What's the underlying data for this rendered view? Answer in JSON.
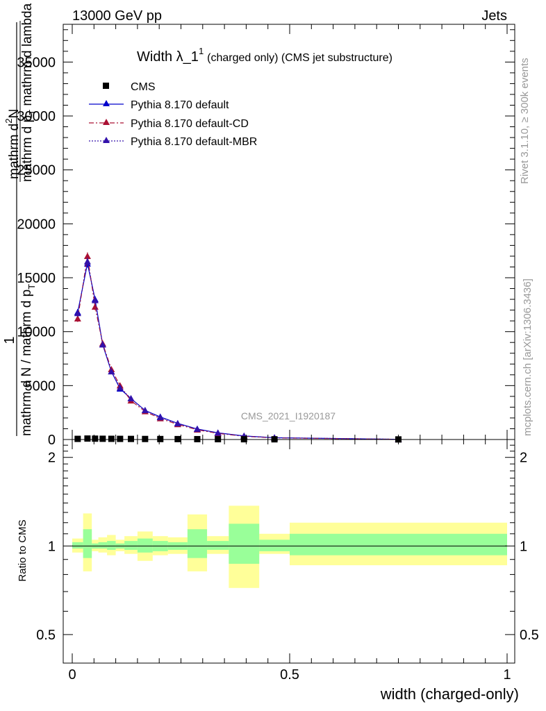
{
  "header": {
    "left": "13000 GeV pp",
    "right": "Jets"
  },
  "side_labels": {
    "rivet": "Rivet 3.1.10, ≥ 300k events",
    "mcplots": "mcplots.cern.ch [arXiv:1306.3436]"
  },
  "watermark": "CMS_2021_I1920187",
  "colors": {
    "cms": "#000000",
    "default": "#0000cc",
    "cd": "#aa1133",
    "mbr": "#3311aa",
    "band_outer": "#ffff99",
    "band_inner": "#99ff99"
  },
  "chart_data": {
    "type": "line",
    "title": {
      "main": "Width λ_1",
      "sup": "1",
      "rest": "(charged only) (CMS jet substructure)"
    },
    "ylabel": {
      "outer_numerator": "1",
      "outer_denominator": "mathrm d N / mathrm d p",
      "outer_denominator_sub": "T",
      "inner_numerator": "mathrm d",
      "inner_numerator_sup": "2",
      "inner_numerator_tail": "N",
      "inner_denominator": "mathrm d p",
      "inner_denominator_sub": "T",
      "inner_denominator_tail": " mathrm d lambda"
    },
    "xlabel": "width (charged-only)",
    "ratio_ylabel": "Ratio to CMS",
    "xlim": [
      0,
      1
    ],
    "ylim": [
      0,
      38500
    ],
    "ratio_ylim": [
      0.4,
      2.3
    ],
    "x_ticks": [
      0,
      0.5,
      1
    ],
    "x_tick_labels": [
      "0",
      "0.5",
      "1"
    ],
    "y_ticks": [
      0,
      5000,
      10000,
      15000,
      20000,
      25000,
      30000,
      35000
    ],
    "y_tick_labels": [
      "0",
      "5000",
      "10000",
      "15000",
      "20000",
      "25000",
      "30000",
      "35000"
    ],
    "ratio_ticks": [
      0.5,
      1,
      2
    ],
    "ratio_tick_labels": [
      "0.5",
      "1",
      "2"
    ],
    "legend": [
      "CMS",
      "Pythia 8.170 default",
      "Pythia 8.170 default-CD",
      "Pythia 8.170 default-MBR"
    ],
    "bin_edges": [
      0,
      0.025,
      0.045,
      0.06,
      0.08,
      0.1,
      0.12,
      0.15,
      0.185,
      0.22,
      0.265,
      0.31,
      0.36,
      0.43,
      0.5,
      1.0
    ],
    "x": [
      0.0125,
      0.035,
      0.0525,
      0.07,
      0.09,
      0.11,
      0.135,
      0.1675,
      0.2025,
      0.2425,
      0.2875,
      0.335,
      0.395,
      0.465,
      0.75
    ],
    "cms_values": [
      60,
      90,
      80,
      70,
      65,
      60,
      55,
      50,
      45,
      40,
      35,
      30,
      25,
      20,
      10
    ],
    "series": [
      {
        "name": "Pythia 8.170 default",
        "style": "solid",
        "color": "#0000cc",
        "values": [
          11800,
          16300,
          13000,
          8800,
          6300,
          4700,
          3800,
          2700,
          2100,
          1500,
          980,
          620,
          330,
          170,
          20
        ],
        "errors": [
          300,
          350,
          300,
          200,
          150,
          120,
          100,
          80,
          60,
          50,
          40,
          30,
          20,
          15,
          5
        ]
      },
      {
        "name": "Pythia 8.170 default-CD",
        "style": "dashdot",
        "color": "#aa1133",
        "values": [
          11200,
          17000,
          12300,
          8900,
          6500,
          5000,
          3600,
          2600,
          1950,
          1400,
          900,
          570,
          300,
          150,
          18
        ],
        "errors": [
          300,
          350,
          300,
          200,
          150,
          120,
          100,
          80,
          60,
          50,
          40,
          30,
          20,
          15,
          5
        ]
      },
      {
        "name": "Pythia 8.170 default-MBR",
        "style": "dotted",
        "color": "#3311aa",
        "values": [
          11700,
          16500,
          12900,
          8800,
          6300,
          4800,
          3800,
          2700,
          2050,
          1480,
          960,
          610,
          320,
          165,
          20
        ],
        "errors": [
          300,
          350,
          300,
          200,
          150,
          120,
          100,
          80,
          60,
          50,
          40,
          30,
          20,
          15,
          5
        ]
      }
    ],
    "ratio_band_outer": [
      [
        0.95,
        1.06
      ],
      [
        0.82,
        1.29
      ],
      [
        0.96,
        1.05
      ],
      [
        0.95,
        1.07
      ],
      [
        0.93,
        1.09
      ],
      [
        0.96,
        1.05
      ],
      [
        0.94,
        1.08
      ],
      [
        0.89,
        1.12
      ],
      [
        0.93,
        1.08
      ],
      [
        0.94,
        1.07
      ],
      [
        0.82,
        1.28
      ],
      [
        0.94,
        1.08
      ],
      [
        0.72,
        1.37
      ],
      [
        0.94,
        1.1
      ],
      [
        0.86,
        1.2
      ]
    ],
    "ratio_band_inner": [
      [
        0.98,
        1.03
      ],
      [
        0.91,
        1.14
      ],
      [
        0.98,
        1.02
      ],
      [
        0.98,
        1.03
      ],
      [
        0.97,
        1.04
      ],
      [
        0.98,
        1.02
      ],
      [
        0.97,
        1.04
      ],
      [
        0.95,
        1.06
      ],
      [
        0.96,
        1.04
      ],
      [
        0.97,
        1.03
      ],
      [
        0.91,
        1.14
      ],
      [
        0.97,
        1.04
      ],
      [
        0.87,
        1.19
      ],
      [
        0.96,
        1.05
      ],
      [
        0.93,
        1.1
      ]
    ]
  }
}
